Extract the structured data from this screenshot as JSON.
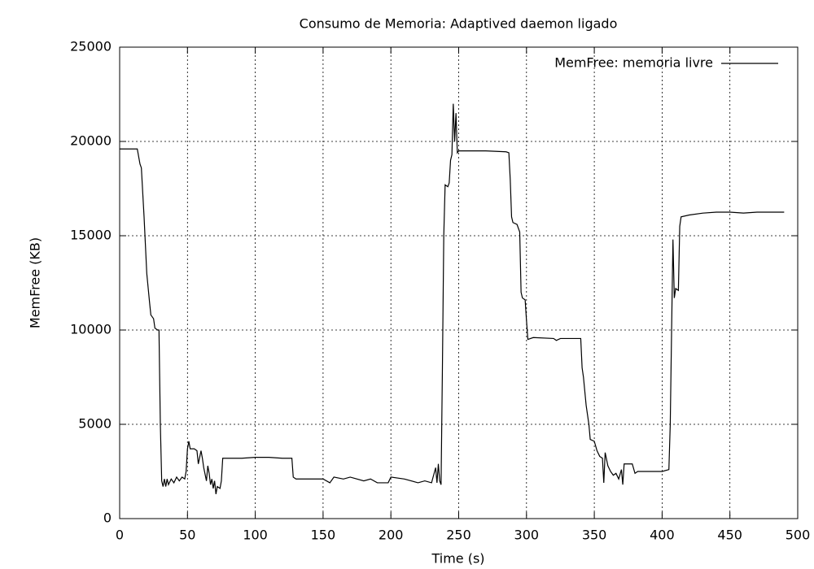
{
  "chart_data": {
    "type": "line",
    "title": "Consumo de Memoria: Adaptived daemon ligado",
    "x_label": "Time (s)",
    "y_label": "MemFree (KB)",
    "xlim": [
      0,
      500
    ],
    "ylim": [
      0,
      25000
    ],
    "xticks": [
      0,
      50,
      100,
      150,
      200,
      250,
      300,
      350,
      400,
      450,
      500
    ],
    "yticks": [
      0,
      5000,
      10000,
      15000,
      20000,
      25000
    ],
    "grid": true,
    "legend_position": "upper right",
    "x": [
      0,
      12,
      13,
      15,
      16,
      18,
      19,
      20,
      22,
      23,
      25,
      26,
      28,
      29,
      30,
      31,
      32,
      33,
      34,
      35,
      36,
      38,
      40,
      42,
      44,
      46,
      48,
      49,
      50,
      51,
      52,
      55,
      57,
      58,
      60,
      61,
      62,
      64,
      65,
      66,
      67,
      68,
      69,
      70,
      71,
      72,
      74,
      75,
      76,
      80,
      90,
      100,
      110,
      120,
      127,
      128,
      130,
      150,
      155,
      158,
      165,
      170,
      180,
      185,
      190,
      198,
      200,
      210,
      220,
      225,
      230,
      233,
      234,
      235,
      236,
      237,
      238,
      239,
      240,
      242,
      243,
      244,
      245,
      246,
      247,
      248,
      249,
      250,
      260,
      270,
      285,
      287,
      288,
      289,
      290,
      293,
      295,
      296,
      297,
      299,
      300,
      301,
      305,
      320,
      322,
      325,
      340,
      341,
      342,
      344,
      346,
      347,
      350,
      352,
      354,
      356,
      357,
      358,
      360,
      362,
      364,
      366,
      368,
      370,
      371,
      372,
      378,
      380,
      382,
      390,
      400,
      405,
      406,
      407,
      408,
      409,
      410,
      412,
      413,
      414,
      420,
      430,
      440,
      450,
      460,
      470,
      480,
      490
    ],
    "series": [
      {
        "name": "MemFree: memoria livre",
        "color": "#000000",
        "values": [
          19600,
          19600,
          19600,
          18800,
          18600,
          16000,
          14500,
          13000,
          11500,
          10800,
          10600,
          10100,
          10000,
          10000,
          5000,
          2000,
          1700,
          2100,
          1700,
          2100,
          1800,
          2100,
          1900,
          2200,
          2000,
          2200,
          2100,
          2500,
          3700,
          4100,
          3700,
          3700,
          3600,
          2900,
          3600,
          3200,
          2700,
          2000,
          2800,
          2400,
          1800,
          2100,
          1600,
          2000,
          1300,
          1700,
          1600,
          2000,
          3200,
          3200,
          3200,
          3250,
          3250,
          3200,
          3200,
          2200,
          2100,
          2100,
          1900,
          2200,
          2100,
          2200,
          2000,
          2100,
          1900,
          1900,
          2200,
          2100,
          1900,
          2000,
          1900,
          2700,
          1900,
          2900,
          2000,
          1800,
          8000,
          15000,
          17700,
          17600,
          17800,
          19000,
          19300,
          22000,
          20000,
          21500,
          19400,
          19500,
          19500,
          19500,
          19450,
          19400,
          18000,
          16000,
          15700,
          15600,
          15200,
          12000,
          11700,
          11600,
          10500,
          9500,
          9600,
          9550,
          9450,
          9550,
          9550,
          8000,
          7500,
          6000,
          5000,
          4200,
          4100,
          3600,
          3300,
          3200,
          1900,
          3500,
          2800,
          2500,
          2300,
          2400,
          2100,
          2600,
          1800,
          2900,
          2900,
          2400,
          2500,
          2500,
          2500,
          2600,
          5000,
          10000,
          14800,
          11700,
          12200,
          12100,
          15500,
          16000,
          16100,
          16200,
          16250,
          16250,
          16200,
          16250,
          16250,
          16250
        ]
      }
    ]
  }
}
